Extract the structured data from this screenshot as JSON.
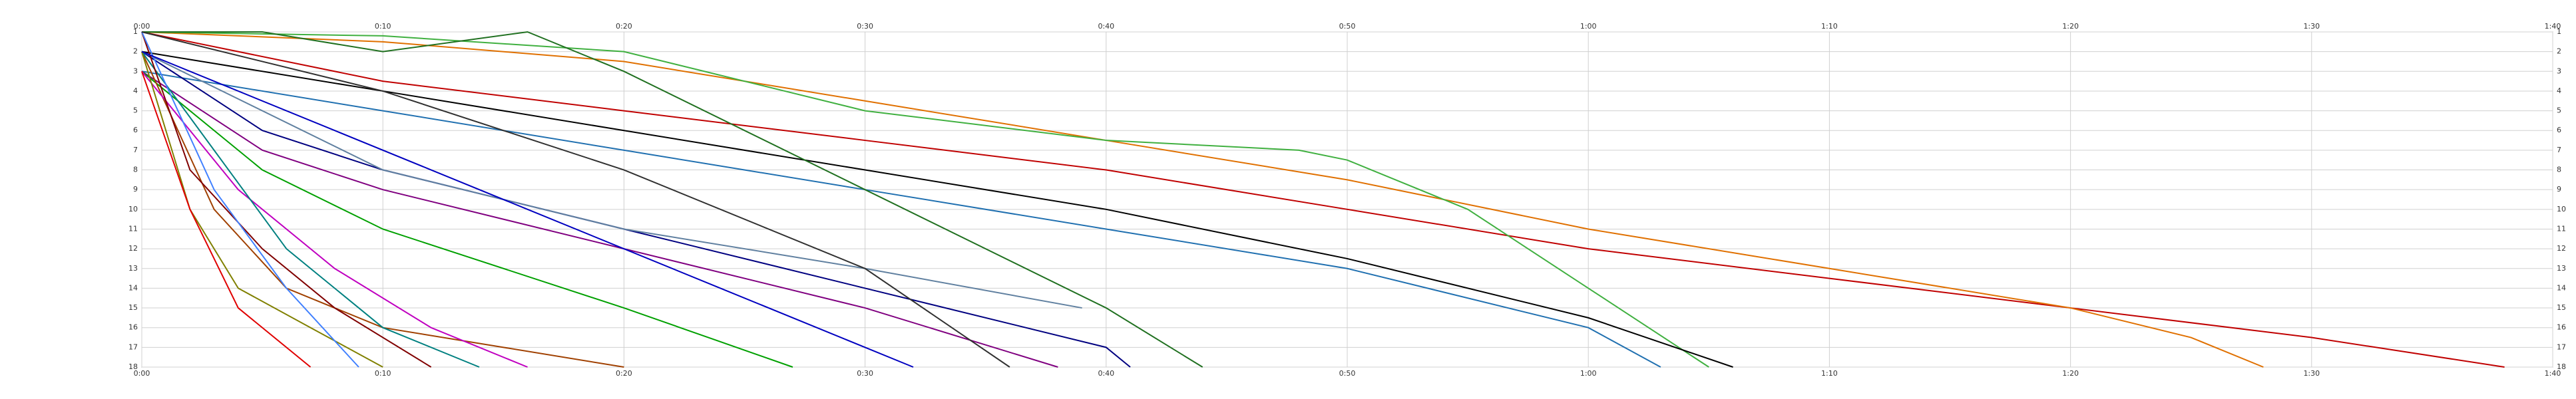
{
  "chart_data": {
    "type": "line",
    "xlim": [
      0,
      100
    ],
    "xticks": [
      {
        "value": 0,
        "label": "0:00"
      },
      {
        "value": 10,
        "label": "0:10"
      },
      {
        "value": 20,
        "label": "0:20"
      },
      {
        "value": 30,
        "label": "0:30"
      },
      {
        "value": 40,
        "label": "0:40"
      },
      {
        "value": 50,
        "label": "0:50"
      },
      {
        "value": 60,
        "label": "1:00"
      },
      {
        "value": 70,
        "label": "1:10"
      },
      {
        "value": 80,
        "label": "1:20"
      },
      {
        "value": 90,
        "label": "1:30"
      },
      {
        "value": 100,
        "label": "1:40"
      }
    ],
    "ylim": [
      1,
      18
    ],
    "yticks": [
      1,
      2,
      3,
      4,
      5,
      6,
      7,
      8,
      9,
      10,
      11,
      12,
      13,
      14,
      15,
      16,
      17,
      18
    ],
    "grid": true,
    "series": [
      {
        "color": "#c00000",
        "x": [
          0,
          10,
          20,
          30,
          40,
          50,
          60,
          70,
          80,
          90,
          98
        ],
        "values": [
          1,
          3.5,
          5,
          6.5,
          8,
          10,
          12,
          13.5,
          15,
          16.5,
          18
        ]
      },
      {
        "color": "#e07000",
        "x": [
          0,
          10,
          20,
          30,
          40,
          50,
          60,
          70,
          80,
          85,
          88
        ],
        "values": [
          1,
          1.5,
          2.5,
          4.5,
          6.5,
          8.5,
          11,
          13,
          15,
          16.5,
          18
        ]
      },
      {
        "color": "#40b040",
        "x": [
          0,
          10,
          20,
          30,
          40,
          48,
          50,
          55,
          60,
          65
        ],
        "values": [
          1,
          1.2,
          2,
          5,
          6.5,
          7,
          7.5,
          10,
          14,
          18
        ]
      },
      {
        "color": "#000000",
        "x": [
          0,
          10,
          20,
          30,
          40,
          50,
          60,
          66
        ],
        "values": [
          2,
          4,
          6,
          8,
          10,
          12.5,
          15.5,
          18
        ]
      },
      {
        "color": "#2070b0",
        "x": [
          0,
          10,
          20,
          30,
          40,
          50,
          60,
          63
        ],
        "values": [
          3,
          5,
          7,
          9,
          11,
          13,
          16,
          18
        ]
      },
      {
        "color": "#207020",
        "x": [
          0,
          5,
          10,
          16,
          20,
          30,
          40,
          44
        ],
        "values": [
          1,
          1,
          2,
          1,
          3,
          9,
          15,
          18
        ]
      },
      {
        "color": "#000080",
        "x": [
          0,
          5,
          10,
          20,
          30,
          40,
          41
        ],
        "values": [
          2,
          6,
          8,
          11,
          14,
          17,
          18
        ]
      },
      {
        "color": "#800080",
        "x": [
          0,
          5,
          10,
          20,
          30,
          38
        ],
        "values": [
          3,
          7,
          9,
          12,
          15,
          18
        ]
      },
      {
        "color": "#6080a0",
        "x": [
          0,
          10,
          20,
          30,
          39
        ],
        "values": [
          2,
          8,
          11,
          13,
          15
        ]
      },
      {
        "color": "#00a000",
        "x": [
          0,
          5,
          10,
          20,
          27
        ],
        "values": [
          3,
          8,
          11,
          15,
          18
        ]
      },
      {
        "color": "#a04000",
        "x": [
          0,
          3,
          6,
          10,
          15,
          20
        ],
        "values": [
          2,
          10,
          14,
          16,
          17,
          18
        ]
      },
      {
        "color": "#c000c0",
        "x": [
          0,
          4,
          8,
          12,
          16
        ],
        "values": [
          3,
          9,
          13,
          16,
          18
        ]
      },
      {
        "color": "#008080",
        "x": [
          0,
          3,
          6,
          10,
          14
        ],
        "values": [
          2,
          7,
          12,
          16,
          18
        ]
      },
      {
        "color": "#800000",
        "x": [
          0,
          2,
          5,
          8,
          12
        ],
        "values": [
          1,
          8,
          12,
          15,
          18
        ]
      },
      {
        "color": "#808000",
        "x": [
          0,
          2,
          4,
          7,
          10
        ],
        "values": [
          2,
          10,
          14,
          16,
          18
        ]
      },
      {
        "color": "#4080ff",
        "x": [
          0,
          3,
          6,
          9
        ],
        "values": [
          1,
          9,
          14,
          18
        ]
      },
      {
        "color": "#e00000",
        "x": [
          0,
          2,
          4,
          7
        ],
        "values": [
          3,
          10,
          15,
          18
        ]
      },
      {
        "color": "#303030",
        "x": [
          0,
          10,
          20,
          30,
          36
        ],
        "values": [
          1,
          4,
          8,
          13,
          18
        ]
      },
      {
        "color": "#0000c0",
        "x": [
          0,
          8,
          16,
          24,
          32
        ],
        "values": [
          2,
          6,
          10,
          14,
          18
        ]
      }
    ]
  }
}
